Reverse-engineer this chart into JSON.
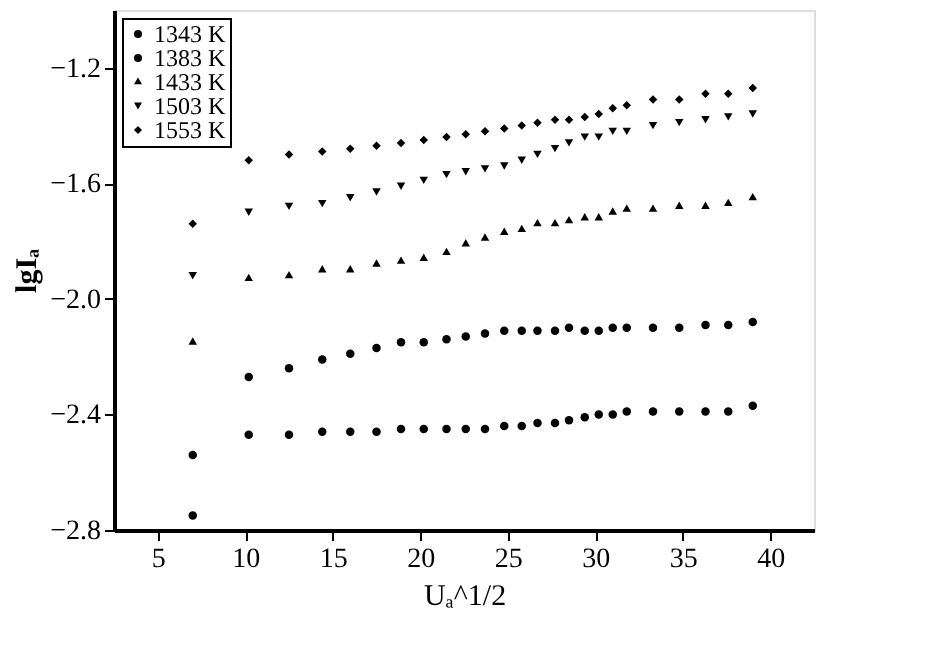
{
  "chart_data": {
    "type": "scatter",
    "xlabel": "Uₐ^1/2",
    "ylabel": "lgIₐ",
    "xlim": [
      2.5,
      42.5
    ],
    "xticks": [
      5,
      10,
      15,
      20,
      25,
      30,
      35,
      40
    ],
    "ylim": [
      -2.8,
      -1.0
    ],
    "yticks": [
      {
        "value": -2.8,
        "label": "−2.8"
      },
      {
        "value": -2.4,
        "label": "−2.4"
      },
      {
        "value": -2.0,
        "label": "−2.0"
      },
      {
        "value": -1.6,
        "label": "−1.6"
      },
      {
        "value": -1.2,
        "label": "−1.2"
      }
    ],
    "grid": false,
    "legend": "top left",
    "x": [
      7,
      10.2,
      12.5,
      14.4,
      16,
      17.5,
      18.9,
      20.2,
      21.5,
      22.6,
      23.7,
      24.8,
      25.8,
      26.7,
      27.7,
      28.5,
      29.4,
      30.2,
      31,
      31.8,
      33.3,
      34.8,
      36.3,
      37.6,
      39
    ],
    "series": [
      {
        "name": "1343 K",
        "color": "#000000",
        "marker": "circle",
        "values": [
          -2.75,
          -2.47,
          -2.47,
          -2.46,
          -2.46,
          -2.46,
          -2.45,
          -2.45,
          -2.45,
          -2.45,
          -2.45,
          -2.44,
          -2.44,
          -2.43,
          -2.43,
          -2.42,
          -2.41,
          -2.4,
          -2.4,
          -2.39,
          -2.39,
          -2.39,
          -2.39,
          -2.39,
          -2.37
        ]
      },
      {
        "name": "1383 K",
        "color": "#000000",
        "marker": "circle",
        "values": [
          -2.54,
          -2.27,
          -2.24,
          -2.21,
          -2.19,
          -2.17,
          -2.15,
          -2.15,
          -2.14,
          -2.13,
          -2.12,
          -2.11,
          -2.11,
          -2.11,
          -2.11,
          -2.1,
          -2.11,
          -2.11,
          -2.1,
          -2.1,
          -2.1,
          -2.1,
          -2.09,
          -2.09,
          -2.08
        ]
      },
      {
        "name": "1433 K",
        "color": "#000000",
        "marker": "triangle",
        "values": [
          -2.15,
          -1.93,
          -1.92,
          -1.9,
          -1.9,
          -1.88,
          -1.87,
          -1.86,
          -1.84,
          -1.81,
          -1.79,
          -1.77,
          -1.76,
          -1.74,
          -1.74,
          -1.73,
          -1.72,
          -1.72,
          -1.7,
          -1.69,
          -1.69,
          -1.68,
          -1.68,
          -1.67,
          -1.65
        ]
      },
      {
        "name": "1503 K",
        "color": "#000000",
        "marker": "triangle-down",
        "values": [
          -1.92,
          -1.7,
          -1.68,
          -1.67,
          -1.65,
          -1.63,
          -1.61,
          -1.59,
          -1.57,
          -1.56,
          -1.55,
          -1.54,
          -1.52,
          -1.5,
          -1.48,
          -1.46,
          -1.44,
          -1.44,
          -1.42,
          -1.42,
          -1.4,
          -1.39,
          -1.38,
          -1.37,
          -1.36
        ]
      },
      {
        "name": "1553 K",
        "color": "#000000",
        "marker": "diamond",
        "values": [
          -1.74,
          -1.52,
          -1.5,
          -1.49,
          -1.48,
          -1.47,
          -1.46,
          -1.45,
          -1.44,
          -1.43,
          -1.42,
          -1.41,
          -1.4,
          -1.39,
          -1.38,
          -1.38,
          -1.37,
          -1.36,
          -1.34,
          -1.33,
          -1.31,
          -1.31,
          -1.29,
          -1.29,
          -1.27
        ]
      }
    ]
  }
}
